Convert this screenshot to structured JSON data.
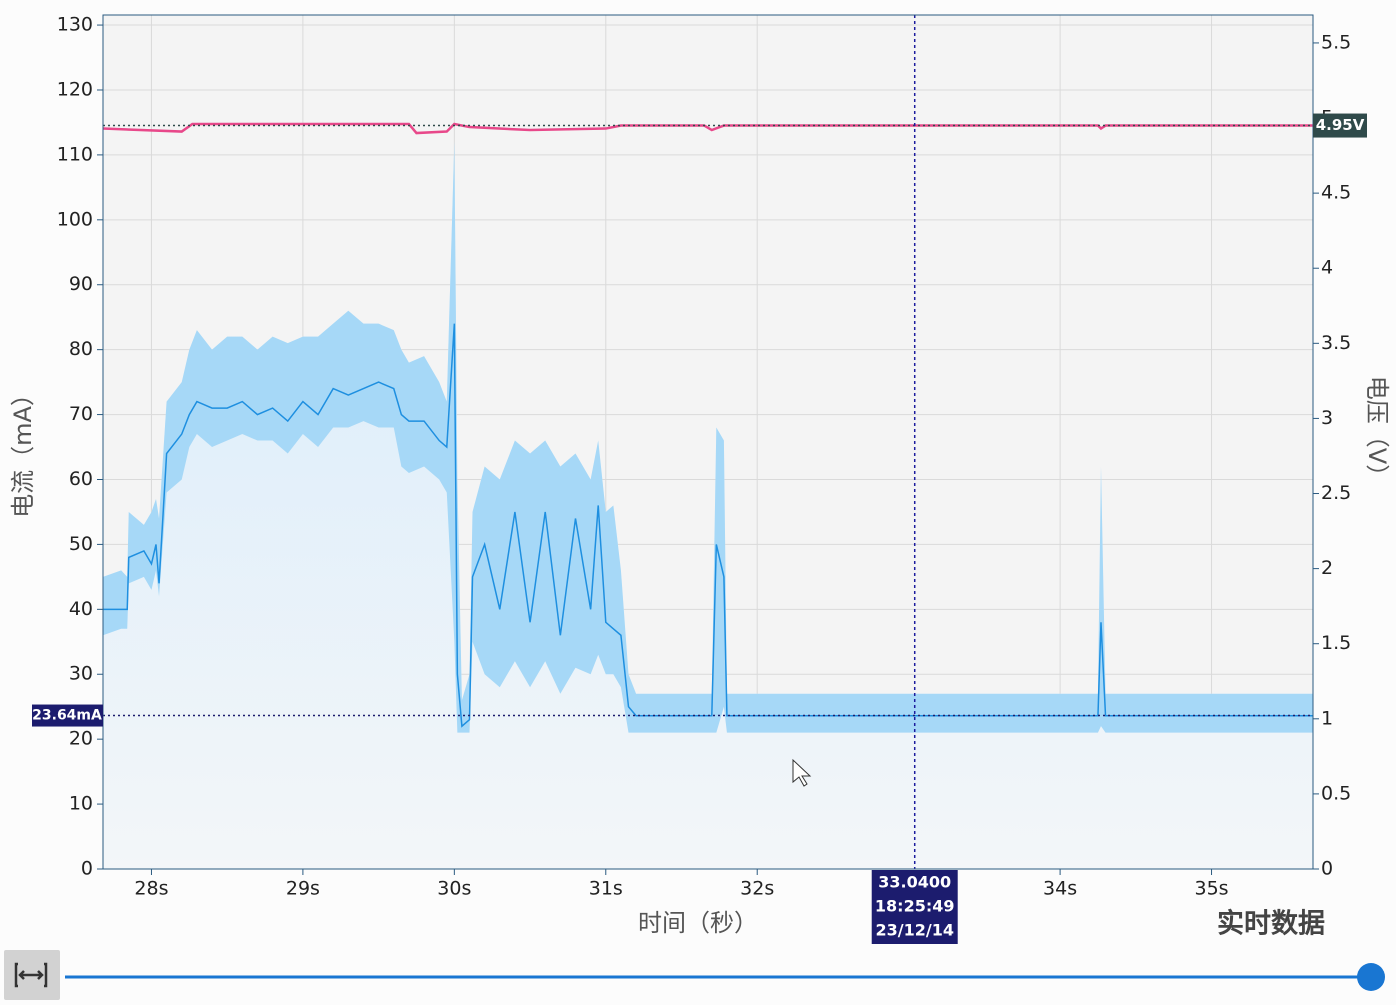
{
  "chart_data": {
    "type": "line",
    "x_title": "时间（秒）",
    "y_title": "电流（mA）",
    "y2_title": "电压（V）",
    "status": "实时数据",
    "xlim": [
      27.68,
      35.67
    ],
    "ylim": [
      0,
      131.55
    ],
    "y2lim": [
      0,
      5.686
    ],
    "xticks": [
      {
        "value": 28,
        "label": "28s"
      },
      {
        "value": 29,
        "label": "29s"
      },
      {
        "value": 30,
        "label": "30s"
      },
      {
        "value": 31,
        "label": "31s"
      },
      {
        "value": 32,
        "label": "32s"
      },
      {
        "value": 34,
        "label": "34s"
      },
      {
        "value": 35,
        "label": "35s"
      }
    ],
    "yticks": [
      0,
      10,
      20,
      30,
      40,
      50,
      60,
      70,
      80,
      90,
      100,
      110,
      120,
      130
    ],
    "y2ticks": [
      0,
      0.5,
      1,
      1.5,
      2,
      2.5,
      3,
      3.5,
      4,
      4.5,
      5,
      5.5
    ],
    "grid": true,
    "current": {
      "color": "#1e8fe0",
      "band_color": "#a6d8f7",
      "x": [
        27.68,
        27.8,
        27.84,
        27.85,
        27.95,
        28.0,
        28.03,
        28.05,
        28.1,
        28.2,
        28.25,
        28.3,
        28.4,
        28.5,
        28.6,
        28.7,
        28.8,
        28.9,
        29.0,
        29.1,
        29.2,
        29.3,
        29.4,
        29.5,
        29.6,
        29.65,
        29.7,
        29.8,
        29.9,
        29.95,
        30.0,
        30.02,
        30.05,
        30.1,
        30.12,
        30.2,
        30.3,
        30.4,
        30.5,
        30.6,
        30.7,
        30.8,
        30.9,
        30.95,
        31.0,
        31.05,
        31.1,
        31.15,
        31.2,
        31.5,
        31.7,
        31.73,
        31.78,
        31.8,
        32.5,
        33.0,
        34.0,
        34.25,
        34.27,
        34.3,
        35.0,
        35.67
      ],
      "values": [
        40,
        40,
        40,
        48,
        49,
        47,
        50,
        44,
        64,
        67,
        70,
        72,
        71,
        71,
        72,
        70,
        71,
        69,
        72,
        70,
        74,
        73,
        74,
        75,
        74,
        70,
        69,
        69,
        66,
        65,
        84,
        30,
        22,
        23,
        45,
        50,
        40,
        55,
        38,
        55,
        36,
        54,
        40,
        56,
        38,
        37,
        36,
        25,
        23.6,
        23.6,
        23.6,
        50,
        45,
        23.6,
        23.6,
        23.6,
        23.6,
        23.6,
        38,
        23.6,
        23.6,
        23.6
      ],
      "min": [
        36,
        37,
        37,
        44,
        45,
        43,
        46,
        42,
        58,
        60,
        65,
        67,
        65,
        66,
        67,
        66,
        66,
        64,
        67,
        65,
        68,
        68,
        69,
        68,
        68,
        62,
        61,
        62,
        60,
        58,
        35,
        21,
        21,
        21,
        35,
        30,
        28,
        32,
        28,
        32,
        27,
        31,
        30,
        33,
        30,
        30,
        28,
        21,
        21,
        21,
        21,
        21,
        25,
        21,
        21,
        21,
        21,
        21,
        22,
        21,
        21,
        21
      ],
      "max": [
        45,
        46,
        45,
        55,
        53,
        55,
        57,
        54,
        72,
        75,
        80,
        83,
        80,
        82,
        82,
        80,
        82,
        81,
        82,
        82,
        84,
        86,
        84,
        84,
        83,
        80,
        78,
        79,
        75,
        72,
        112,
        60,
        26,
        30,
        55,
        62,
        60,
        66,
        64,
        66,
        62,
        64,
        60,
        66,
        55,
        56,
        46,
        30,
        27,
        27,
        27,
        68,
        66,
        27,
        27,
        27,
        27,
        27,
        62,
        27,
        27,
        27
      ],
      "marker": {
        "value": 23.64,
        "label": "23.64mA"
      }
    },
    "voltage": {
      "color": "#e8488a",
      "axis": "y2",
      "x": [
        27.68,
        28.2,
        28.27,
        29.7,
        29.75,
        29.95,
        30.0,
        30.1,
        30.5,
        31.0,
        31.1,
        31.65,
        31.7,
        31.78,
        34.25,
        34.27,
        34.3,
        35.67
      ],
      "values": [
        4.93,
        4.91,
        4.96,
        4.96,
        4.9,
        4.91,
        4.96,
        4.94,
        4.92,
        4.93,
        4.95,
        4.95,
        4.92,
        4.95,
        4.95,
        4.93,
        4.95,
        4.95
      ],
      "marker": {
        "value": 4.95,
        "label": "4.95V"
      }
    },
    "cursor": {
      "x": 33.04,
      "lines": [
        "33.0400",
        "18:25:49",
        "23/12/14"
      ]
    }
  }
}
